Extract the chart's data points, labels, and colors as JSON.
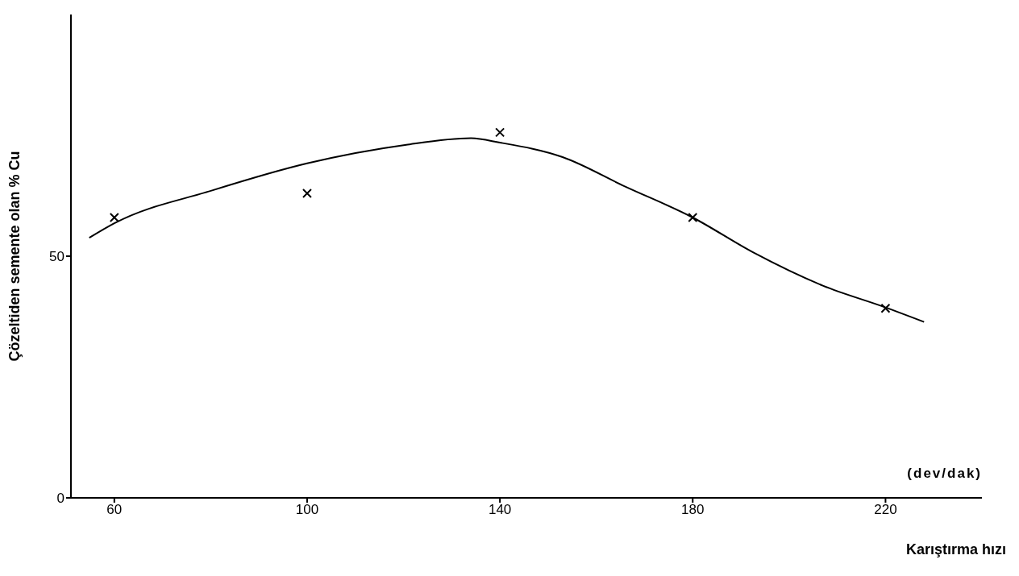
{
  "chart_data": {
    "type": "scatter",
    "xlabel": "Karıştırma hızı",
    "ylabel": "Çözeltiden semente olan % Cu",
    "annotations": [
      "(dev/dak)"
    ],
    "xlim": [
      51,
      240
    ],
    "ylim": [
      0,
      100
    ],
    "xticks": [
      60,
      100,
      140,
      180,
      220
    ],
    "yticks": [
      0,
      50
    ],
    "grid": false,
    "legend": false,
    "series": [
      {
        "marker": "cross",
        "color": "#000000",
        "x": [
          60,
          100,
          140,
          180,
          220
        ],
        "values": [
          58.0,
          63.0,
          75.6,
          58.0,
          39.2
        ]
      },
      {
        "type": "line",
        "marker": "none",
        "line_style": "solid",
        "color": "#000000",
        "x": [
          54.8,
          60,
          80.3,
          100,
          120.3,
          134,
          140,
          153,
          166,
          180,
          192.5,
          207,
          220,
          228
        ],
        "values": [
          53.8,
          56.8,
          63.6,
          69.2,
          73.0,
          74.4,
          73.5,
          70.5,
          64.4,
          58.0,
          50.8,
          43.9,
          39.4,
          36.4
        ]
      }
    ]
  }
}
